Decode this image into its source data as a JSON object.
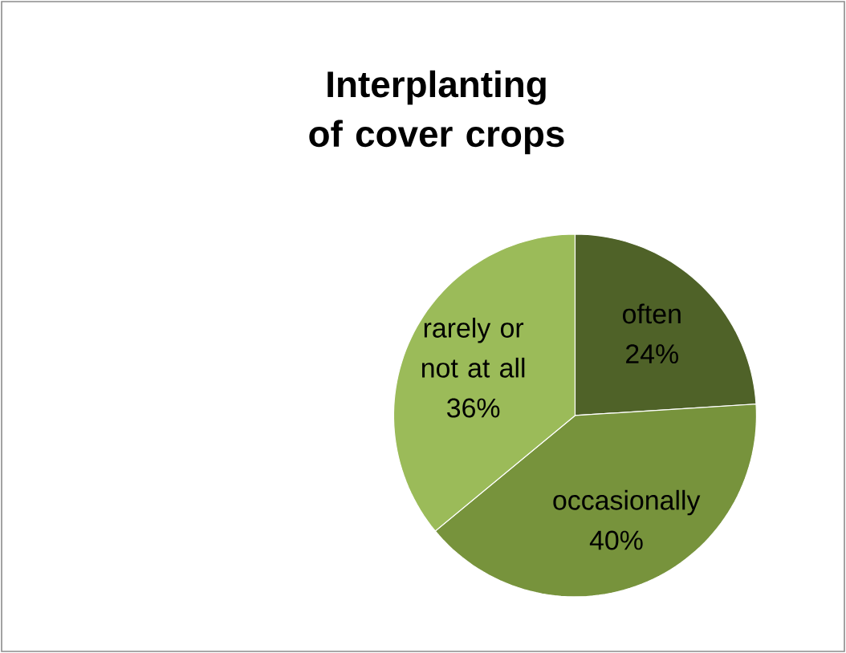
{
  "chart_data": {
    "type": "pie",
    "title": "Interplanting of cover crops",
    "categories": [
      "often",
      "occasionally",
      "rarely or not at all"
    ],
    "values": [
      24,
      40,
      36
    ],
    "value_labels": [
      "24%",
      "40%",
      "36%"
    ],
    "colors": [
      "#4f6228",
      "#77933c",
      "#9bbb59"
    ]
  }
}
